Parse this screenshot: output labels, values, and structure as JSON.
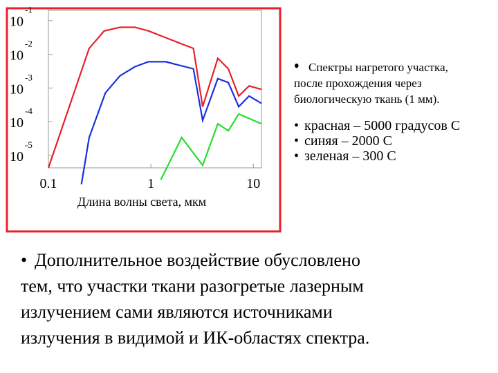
{
  "chart_data": {
    "type": "line",
    "x_label": "Длина волны света, мкм",
    "xlim": [
      0.1,
      12
    ],
    "xticks": [
      0.1,
      1,
      10
    ],
    "xlog": true,
    "ylim": [
      4.3e-06,
      0.2
    ],
    "ylog": true,
    "yticks": [
      {
        "value": 0.1,
        "label": "10",
        "exponent": "-1"
      },
      {
        "value": 0.01,
        "label": "10",
        "exponent": "-2"
      },
      {
        "value": 0.001,
        "label": "10",
        "exponent": "-3"
      },
      {
        "value": 0.0001,
        "label": "10",
        "exponent": "-4"
      },
      {
        "value": 1e-05,
        "label": "10",
        "exponent": "-5"
      }
    ],
    "series": [
      {
        "color": "#e8202a",
        "x": [
          0.1,
          0.25,
          0.35,
          0.5,
          0.7,
          0.95,
          1.4,
          2.1,
          2.6,
          3.2,
          4.5,
          5.7,
          7.2,
          9.1,
          12
        ],
        "values": [
          4.3e-06,
          0.015,
          0.049,
          0.063,
          0.063,
          0.049,
          0.031,
          0.019,
          0.015,
          0.00028,
          0.0076,
          0.0037,
          0.00058,
          0.00115,
          0.00091
        ]
      },
      {
        "color": "#1a2fe0",
        "x": [
          0.21,
          0.25,
          0.36,
          0.5,
          0.7,
          0.95,
          1.4,
          1.9,
          2.6,
          3.2,
          4.5,
          5.7,
          7.2,
          9.1,
          12
        ],
        "values": [
          1.4e-06,
          3.4e-05,
          0.00072,
          0.0023,
          0.0043,
          0.006,
          0.006,
          0.0047,
          0.0037,
          0.00011,
          0.0019,
          0.00145,
          0.00028,
          0.00058,
          0.00035
        ]
      },
      {
        "color": "#22e02a",
        "x": [
          1.25,
          2.0,
          3.2,
          4.5,
          5.7,
          7.2,
          12
        ],
        "values": [
          1.9e-06,
          3.4e-05,
          5.1e-06,
          8.7e-05,
          5.4e-05,
          0.00017,
          8.7e-05
        ]
      }
    ]
  },
  "legend_text": {
    "heading": [
      "Спектры нагретого участка,",
      "после прохождения через",
      "биологическую ткань (1 мм)."
    ],
    "items": [
      "красная – 5000 градусов С",
      "синяя – 2000 С",
      "зеленая – 300 С"
    ]
  },
  "paragraph": [
    "Дополнительное воздействие обусловлено",
    "тем, что участки ткани разогретые лазерным",
    "излучением сами являются источниками",
    "излучения в видимой и ИК-областях спектра."
  ]
}
